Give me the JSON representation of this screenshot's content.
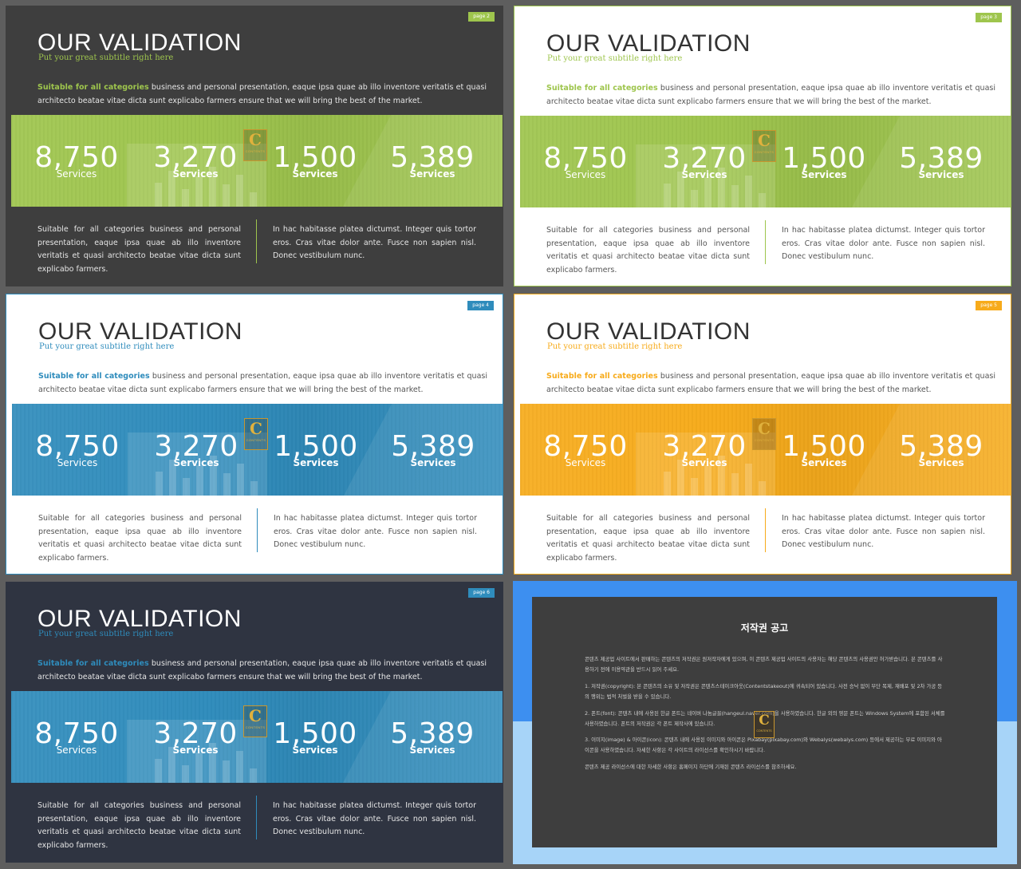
{
  "slides": [
    {
      "page_label": "page  2",
      "title": "OUR VALIDATION",
      "subtitle": "Put your great subtitle right here",
      "intro_highlight": "Suitable for all categories",
      "intro_rest": " business and personal presentation, eaque ipsa quae ab illo inventore veritatis et quasi architecto beatae vitae dicta sunt explicabo farmers ensure that we will bring the best of the market.",
      "stats": [
        {
          "value": "8,750",
          "label": "Services"
        },
        {
          "value": "3,270",
          "label": "Services"
        },
        {
          "value": "1,500",
          "label": "Services"
        },
        {
          "value": "5,389",
          "label": "Services"
        }
      ],
      "logo_letter": "C",
      "logo_word": "CONTENTS",
      "col_left": "Suitable for all categories business and personal presentation, eaque ipsa quae ab illo inventore veritatis et quasi architecto beatae vitae dicta sunt explicabo farmers.",
      "col_right": "In hac habitasse platea dictumst. Integer quis tortor eros. Cras vitae dolor ante. Fusce non sapien nisl. Donec vestibulum nunc.",
      "colors": {
        "accent": "#9ec54d",
        "background": "#3e3e3e",
        "title": "#ffffff",
        "text": "#e6e6e6"
      }
    },
    {
      "page_label": "page  3",
      "title": "OUR VALIDATION",
      "subtitle": "Put your great subtitle right here",
      "intro_highlight": "Suitable for all categories",
      "intro_rest": " business and personal presentation, eaque ipsa quae ab illo inventore veritatis et quasi architecto beatae vitae dicta sunt explicabo farmers ensure that we will bring the best of the market.",
      "stats": [
        {
          "value": "8,750",
          "label": "Services"
        },
        {
          "value": "3,270",
          "label": "Services"
        },
        {
          "value": "1,500",
          "label": "Services"
        },
        {
          "value": "5,389",
          "label": "Services"
        }
      ],
      "logo_letter": "C",
      "logo_word": "CONTENTS",
      "col_left": "Suitable for all categories business and personal presentation, eaque ipsa quae ab illo inventore veritatis et quasi architecto beatae vitae dicta sunt explicabo farmers.",
      "col_right": "In hac habitasse platea dictumst. Integer quis tortor eros. Cras vitae dolor ante. Fusce non sapien nisl. Donec vestibulum nunc.",
      "colors": {
        "accent": "#9ec54d",
        "background": "#ffffff",
        "title": "#333333",
        "text": "#555555"
      }
    },
    {
      "page_label": "page  4",
      "title": "OUR VALIDATION",
      "subtitle": "Put your great subtitle right here",
      "intro_highlight": "Suitable for all categories",
      "intro_rest": " business and personal presentation, eaque ipsa quae ab illo inventore veritatis et quasi architecto beatae vitae dicta sunt explicabo farmers ensure that we will bring the best of the market.",
      "stats": [
        {
          "value": "8,750",
          "label": "Services"
        },
        {
          "value": "3,270",
          "label": "Services"
        },
        {
          "value": "1,500",
          "label": "Services"
        },
        {
          "value": "5,389",
          "label": "Services"
        }
      ],
      "logo_letter": "C",
      "logo_word": "CONTENTS",
      "col_left": "Suitable for all categories business and personal presentation, eaque ipsa quae ab illo inventore veritatis et quasi architecto beatae vitae dicta sunt explicabo farmers.",
      "col_right": "In hac habitasse platea dictumst. Integer quis tortor eros. Cras vitae dolor ante. Fusce non sapien nisl. Donec vestibulum nunc.",
      "colors": {
        "accent": "#2f8cbc",
        "background": "#ffffff",
        "title": "#333333",
        "text": "#555555"
      }
    },
    {
      "page_label": "page  5",
      "title": "OUR VALIDATION",
      "subtitle": "Put your great subtitle right here",
      "intro_highlight": "Suitable for all categories",
      "intro_rest": " business and personal presentation, eaque ipsa quae ab illo inventore veritatis et quasi architecto beatae vitae dicta sunt explicabo farmers ensure that we will bring the best of the market.",
      "stats": [
        {
          "value": "8,750",
          "label": "Services"
        },
        {
          "value": "3,270",
          "label": "Services"
        },
        {
          "value": "1,500",
          "label": "Services"
        },
        {
          "value": "5,389",
          "label": "Services"
        }
      ],
      "logo_letter": "C",
      "logo_word": "CONTENTS",
      "col_left": "Suitable for all categories business and personal presentation, eaque ipsa quae ab illo inventore veritatis et quasi architecto beatae vitae dicta sunt explicabo farmers.",
      "col_right": "In hac habitasse platea dictumst. Integer quis tortor eros. Cras vitae dolor ante. Fusce non sapien nisl. Donec vestibulum nunc.",
      "colors": {
        "accent": "#f7ab1b",
        "background": "#ffffff",
        "title": "#333333",
        "text": "#555555"
      }
    },
    {
      "page_label": "page  6",
      "title": "OUR VALIDATION",
      "subtitle": "Put your great subtitle right here",
      "intro_highlight": "Suitable for all categories",
      "intro_rest": " business and personal presentation, eaque ipsa quae ab illo inventore veritatis et quasi architecto beatae vitae dicta sunt explicabo farmers ensure that we will bring the best of the market.",
      "stats": [
        {
          "value": "8,750",
          "label": "Services"
        },
        {
          "value": "3,270",
          "label": "Services"
        },
        {
          "value": "1,500",
          "label": "Services"
        },
        {
          "value": "5,389",
          "label": "Services"
        }
      ],
      "logo_letter": "C",
      "logo_word": "CONTENTS",
      "col_left": "Suitable for all categories business and personal presentation, eaque ipsa quae ab illo inventore veritatis et quasi architecto beatae vitae dicta sunt explicabo farmers.",
      "col_right": "In hac habitasse platea dictumst. Integer quis tortor eros. Cras vitae dolor ante. Fusce non sapien nisl. Donec vestibulum nunc.",
      "colors": {
        "accent": "#2f8cbc",
        "background": "#2f3441",
        "title": "#ffffff",
        "text": "#e6e6e6"
      }
    }
  ],
  "notice": {
    "title": "저작권 공고",
    "paragraphs": [
      "콘텐츠 제공업 사이트에서 판매하는 콘텐츠의 저작권은 원저작자에게 있으며, 이 콘텐츠 제공업 사이트의 사용자는 해당 콘텐츠의 사용권만 허가받습니다. 본 콘텐츠를 사용하기 전에 이용약관을 반드시 읽어 주세요.",
      "1. 저작권(copyright): 본 콘텐츠의 소유 및 저작권은 콘텐츠스테이크아웃(Contentstakeout)에 귀속되어 있습니다. 사전 승낙 없이 무단 복제, 재배포 및 2차 가공 등의 행위는 법적 처벌을 받을 수 있습니다.",
      "2. 폰트(font): 콘텐츠 내에 사용된 한글 폰트는 네이버 나눔글꼴(hangeul.naver.com)을 사용하였습니다. 한글 외의 영문 폰트는 Windows System에 포함된 서체를 사용하였습니다. 폰트의 저작권은 각 폰트 제작사에 있습니다.",
      "3. 이미지(image) & 아이콘(icon): 콘텐츠 내에 사용된 이미지와 아이콘은 Pixabay(pixabay.com)와 Webalys(webalys.com) 등에서 제공하는 무료 이미지와 아이콘을 사용하였습니다. 자세한 사항은 각 사이트의 라이선스를 확인하시기 바랍니다.",
      "콘텐츠 제공 라이선스에 대한 자세한 사항은 홈페이지 하단에 기재된 콘텐츠 라이선스를 참조하세요."
    ],
    "logo_letter": "C",
    "logo_word": "CONTENTS",
    "colors": {
      "top": "#3d8ff0",
      "bottom": "#a7d4f8",
      "panel": "#3e3e3e"
    }
  }
}
